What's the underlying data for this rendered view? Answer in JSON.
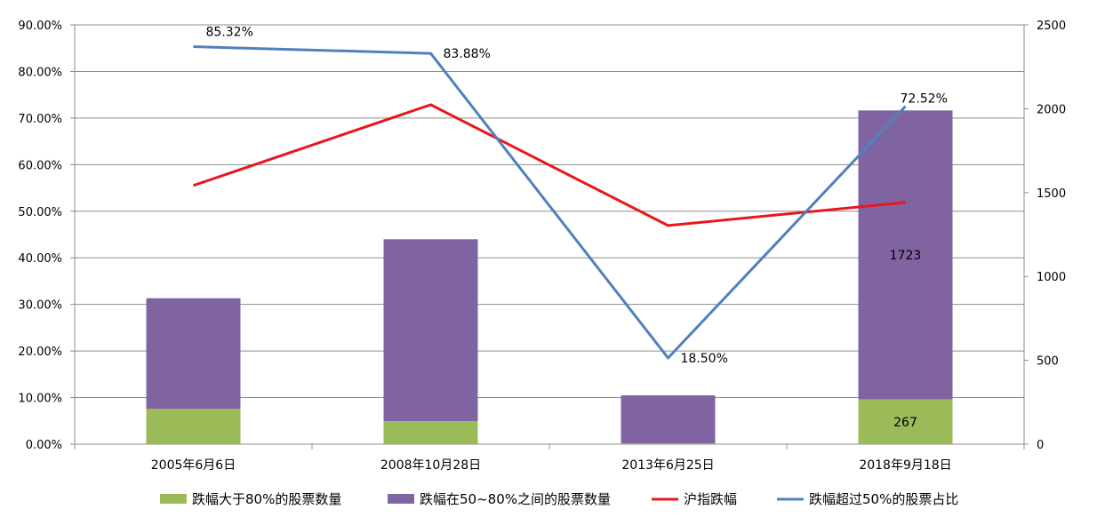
{
  "chart_data": {
    "type": "bar",
    "categories": [
      "2005年6月6日",
      "2008年10月28日",
      "2013年6月25日",
      "2018年9月18日"
    ],
    "left_axis": {
      "min": 0,
      "max": 0.9,
      "step": 0.1,
      "tick_labels": [
        "0.00%",
        "10.00%",
        "20.00%",
        "30.00%",
        "40.00%",
        "50.00%",
        "60.00%",
        "70.00%",
        "80.00%",
        "90.00%"
      ]
    },
    "right_axis": {
      "min": 0,
      "max": 2500,
      "step": 500,
      "tick_labels": [
        "0",
        "500",
        "1000",
        "1500",
        "2000",
        "2500"
      ]
    },
    "grid": true,
    "legend_position": "bottom",
    "series": [
      {
        "name": "跌幅大于80%的股票数量",
        "kind": "bar-stacked",
        "axis": "right",
        "color": "#9BBB59",
        "values": [
          210,
          137,
          5,
          267
        ],
        "data_labels": [
          "",
          "",
          "",
          "267"
        ]
      },
      {
        "name": "跌幅在50~80%之间的股票数量",
        "kind": "bar-stacked",
        "axis": "right",
        "color": "#8064A2",
        "values": [
          660,
          1085,
          286,
          1723
        ],
        "data_labels": [
          "",
          "",
          "",
          "1723"
        ]
      },
      {
        "name": "沪指跌幅",
        "kind": "line",
        "axis": "left",
        "color": "#E8171C",
        "values": [
          0.5552,
          0.7286,
          0.4693,
          0.5189
        ],
        "data_labels": [
          "",
          "",
          "",
          ""
        ]
      },
      {
        "name": "跌幅超过50%的股票占比",
        "kind": "line",
        "axis": "left",
        "color": "#4F81BD",
        "values": [
          0.8532,
          0.8388,
          0.185,
          0.7252
        ],
        "data_labels": [
          "85.32%",
          "83.88%",
          "18.50%",
          "72.52%"
        ]
      }
    ]
  }
}
